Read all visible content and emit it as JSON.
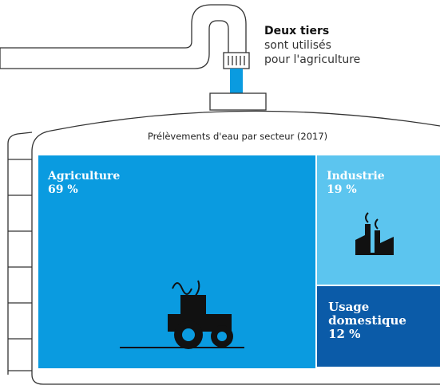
{
  "chart_data": {
    "type": "treemap",
    "title": "Prélèvements d'eau par secteur (2017)",
    "annotation": [
      "Deux tiers",
      "sont utilisés",
      "pour l'agriculture"
    ],
    "categories": [
      "Agriculture",
      "Industrie",
      "Usage domestique"
    ],
    "values": [
      69,
      19,
      12
    ],
    "value_labels": [
      "69 %",
      "19 %",
      "12 %"
    ],
    "colors": [
      "#0a9be0",
      "#5cc5ef",
      "#0b5ba8"
    ]
  }
}
